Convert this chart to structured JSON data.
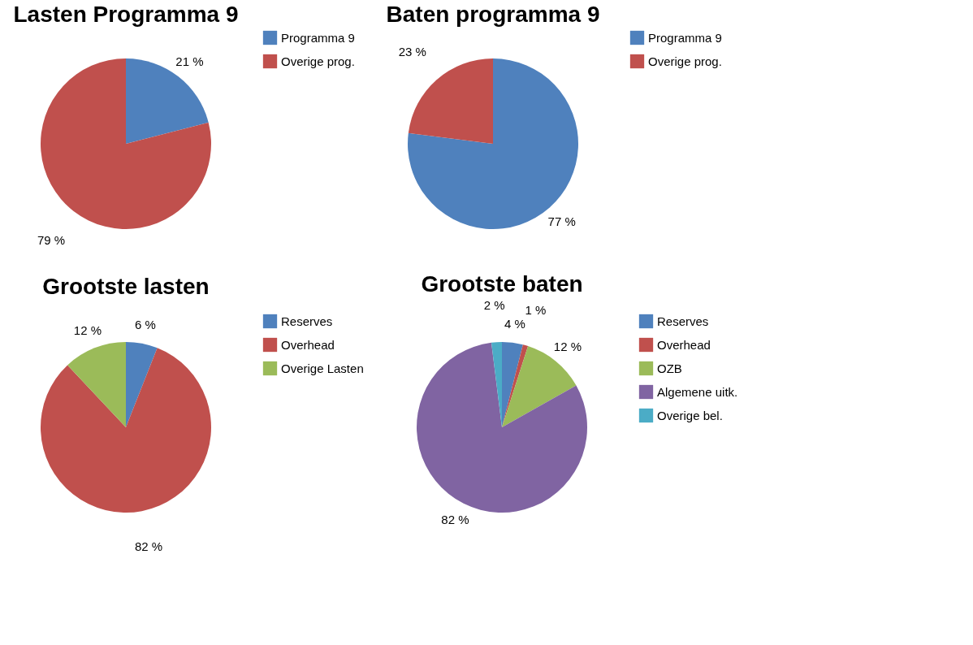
{
  "chart_data": [
    {
      "type": "pie",
      "title": "Lasten Programma 9",
      "categories": [
        "Programma 9",
        "Overige prog."
      ],
      "values": [
        21,
        79
      ],
      "colors": [
        "#4f81bd",
        "#c0504d"
      ],
      "value_labels": [
        "21 %",
        "79 %"
      ],
      "legend": "right"
    },
    {
      "type": "pie",
      "title": "Baten programma 9",
      "categories": [
        "Programma 9",
        "Overige prog."
      ],
      "values": [
        77,
        23
      ],
      "colors": [
        "#4f81bd",
        "#c0504d"
      ],
      "value_labels": [
        "77 %",
        "23 %"
      ],
      "legend": "right"
    },
    {
      "type": "pie",
      "title": "Grootste lasten",
      "categories": [
        "Reserves",
        "Overhead",
        "Overige Lasten"
      ],
      "values": [
        6,
        82,
        12
      ],
      "colors": [
        "#4f81bd",
        "#c0504d",
        "#9bbb59"
      ],
      "value_labels": [
        "6 %",
        "82 %",
        "12 %"
      ],
      "legend": "right"
    },
    {
      "type": "pie",
      "title": "Grootste baten",
      "categories": [
        "Reserves",
        "Overhead",
        "OZB",
        "Algemene uitk.",
        "Overige bel."
      ],
      "values": [
        4,
        1,
        12,
        82,
        2
      ],
      "colors": [
        "#4f81bd",
        "#c0504d",
        "#9bbb59",
        "#8064a2",
        "#4bacc6"
      ],
      "value_labels": [
        "4 %",
        "1 %",
        "12 %",
        "82 %",
        "2 %"
      ],
      "legend": "right"
    }
  ]
}
